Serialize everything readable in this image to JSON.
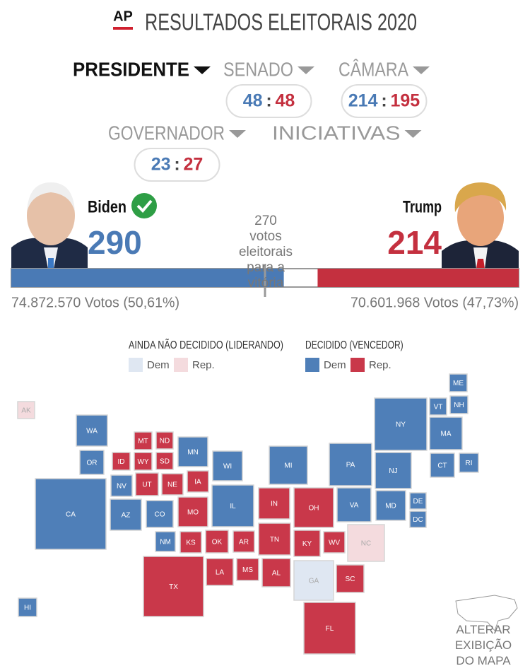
{
  "header": {
    "logo": "AP",
    "title": "RESULTADOS ELEITORAIS 2020"
  },
  "tabs": [
    {
      "label": "PRESIDENTE",
      "active": true
    },
    {
      "label": "SENADO",
      "dem": 48,
      "rep": 48
    },
    {
      "label": "CÂMARA",
      "dem": 214,
      "rep": 195
    },
    {
      "label": "GOVERNADOR",
      "dem": 23,
      "rep": 27
    },
    {
      "label": "INICIATIVAS"
    }
  ],
  "separator": ":",
  "race": {
    "threshold": 270,
    "threshold_label": "votos eleitorais para a vitória",
    "candidates": [
      {
        "name": "Biden",
        "electoral_votes": 290,
        "votes_label": "74.872.570 Votos (50,61%)",
        "winner": true,
        "color": "#4a7ab5"
      },
      {
        "name": "Trump",
        "electoral_votes": 214,
        "votes_label": "70.601.968 Votos (47,73%)",
        "winner": false,
        "color": "#c4303f"
      }
    ]
  },
  "legend": [
    {
      "title": "AINDA NÃO DECIDIDO (LIDERANDO)",
      "items": [
        {
          "label": "Dem",
          "color": "#dfe7f2"
        },
        {
          "label": "Rep.",
          "color": "#f4dbde"
        }
      ]
    },
    {
      "title": "DECIDIDO (VENCEDOR)",
      "items": [
        {
          "label": "Dem",
          "color": "#4f7fb8"
        },
        {
          "label": "Rep.",
          "color": "#c9384a"
        }
      ]
    }
  ],
  "map": {
    "states": [
      {
        "label": "AK",
        "party": "rep",
        "decided": false
      },
      {
        "label": "WA",
        "party": "dem",
        "decided": true
      },
      {
        "label": "OR",
        "party": "dem",
        "decided": true
      },
      {
        "label": "CA",
        "party": "dem",
        "decided": true
      },
      {
        "label": "HI",
        "party": "dem",
        "decided": true
      },
      {
        "label": "ID",
        "party": "rep",
        "decided": true
      },
      {
        "label": "MT",
        "party": "rep",
        "decided": true
      },
      {
        "label": "WY",
        "party": "rep",
        "decided": true
      },
      {
        "label": "ND",
        "party": "rep",
        "decided": true
      },
      {
        "label": "SD",
        "party": "rep",
        "decided": true
      },
      {
        "label": "NV",
        "party": "dem",
        "decided": true
      },
      {
        "label": "UT",
        "party": "rep",
        "decided": true
      },
      {
        "label": "AZ",
        "party": "dem",
        "decided": true
      },
      {
        "label": "CO",
        "party": "dem",
        "decided": true
      },
      {
        "label": "NM",
        "party": "dem",
        "decided": true
      },
      {
        "label": "NE",
        "party": "rep",
        "decided": true
      },
      {
        "label": "MN",
        "party": "dem",
        "decided": true
      },
      {
        "label": "IA",
        "party": "rep",
        "decided": true
      },
      {
        "label": "KS",
        "party": "rep",
        "decided": true
      },
      {
        "label": "MO",
        "party": "rep",
        "decided": true
      },
      {
        "label": "OK",
        "party": "rep",
        "decided": true
      },
      {
        "label": "TX",
        "party": "rep",
        "decided": true
      },
      {
        "label": "WI",
        "party": "dem",
        "decided": true
      },
      {
        "label": "IL",
        "party": "dem",
        "decided": true
      },
      {
        "label": "AR",
        "party": "rep",
        "decided": true
      },
      {
        "label": "LA",
        "party": "rep",
        "decided": true
      },
      {
        "label": "MS",
        "party": "rep",
        "decided": true
      },
      {
        "label": "MI",
        "party": "dem",
        "decided": true
      },
      {
        "label": "IN",
        "party": "rep",
        "decided": true
      },
      {
        "label": "TN",
        "party": "rep",
        "decided": true
      },
      {
        "label": "AL",
        "party": "rep",
        "decided": true
      },
      {
        "label": "OH",
        "party": "rep",
        "decided": true
      },
      {
        "label": "KY",
        "party": "rep",
        "decided": true
      },
      {
        "label": "GA",
        "party": "dem",
        "decided": false
      },
      {
        "label": "WV",
        "party": "rep",
        "decided": true
      },
      {
        "label": "FL",
        "party": "rep",
        "decided": true
      },
      {
        "label": "PA",
        "party": "dem",
        "decided": true
      },
      {
        "label": "VA",
        "party": "dem",
        "decided": true
      },
      {
        "label": "NC",
        "party": "rep",
        "decided": false
      },
      {
        "label": "SC",
        "party": "rep",
        "decided": true
      },
      {
        "label": "NJ",
        "party": "dem",
        "decided": true
      },
      {
        "label": "NY",
        "party": "dem",
        "decided": true
      },
      {
        "label": "MD",
        "party": "dem",
        "decided": true
      },
      {
        "label": "DE",
        "party": "dem",
        "decided": true
      },
      {
        "label": "DC",
        "party": "dem",
        "decided": true
      },
      {
        "label": "VT",
        "party": "dem",
        "decided": true
      },
      {
        "label": "NH",
        "party": "dem",
        "decided": true
      },
      {
        "label": "ME",
        "party": "dem",
        "decided": true
      },
      {
        "label": "MA",
        "party": "dem",
        "decided": true
      },
      {
        "label": "CT",
        "party": "dem",
        "decided": true
      },
      {
        "label": "RI",
        "party": "dem",
        "decided": true
      }
    ]
  },
  "map_toggle": "ALTERAR EXIBIÇÃO DO MAPA"
}
